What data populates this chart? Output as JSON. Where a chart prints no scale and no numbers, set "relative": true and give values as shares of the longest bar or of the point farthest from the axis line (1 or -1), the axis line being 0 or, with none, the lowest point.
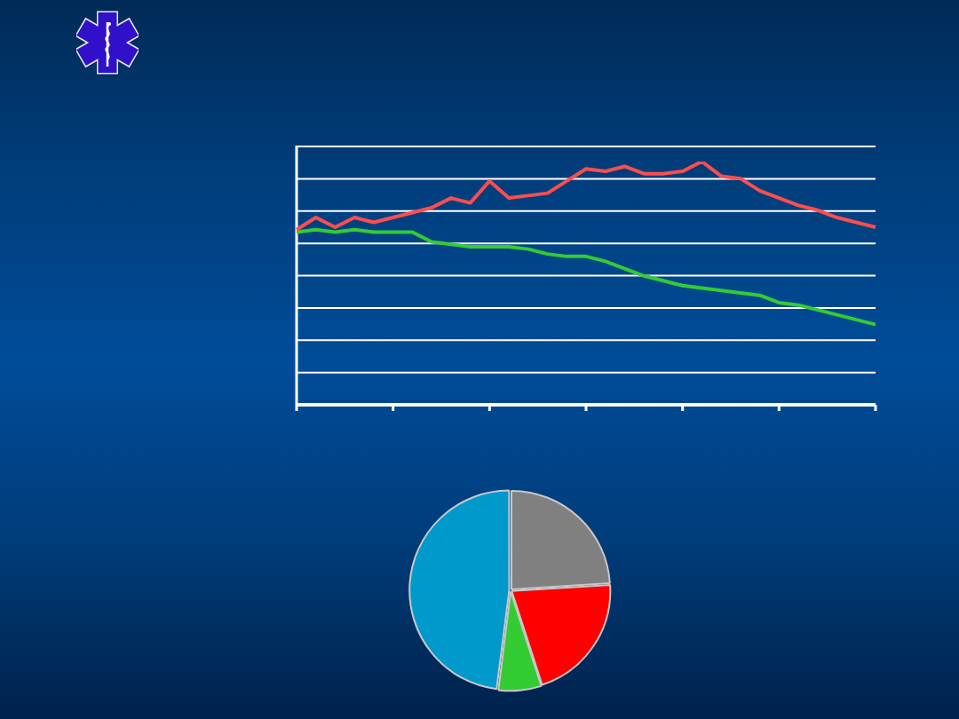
{
  "chart_data": [
    {
      "type": "line",
      "relative": true,
      "categories": [
        null,
        null,
        null,
        null,
        null,
        null,
        null,
        null,
        null,
        null,
        null,
        null,
        null,
        null,
        null,
        null,
        null,
        null,
        null,
        null,
        null,
        null,
        null,
        null,
        null,
        null,
        null,
        null,
        null,
        null,
        null
      ],
      "series": [
        {
          "color": "#ff4d4d",
          "values": [
            0.72,
            0.77,
            0.73,
            0.77,
            0.75,
            0.77,
            0.79,
            0.81,
            0.85,
            0.83,
            0.92,
            0.85,
            0.86,
            0.87,
            0.92,
            0.97,
            0.96,
            0.98,
            0.95,
            0.95,
            0.96,
            1,
            0.94,
            0.93,
            0.88,
            0.85,
            0.82,
            0.8,
            0.77,
            0.75,
            0.73
          ]
        },
        {
          "color": "#33cc33",
          "values": [
            0.71,
            0.72,
            0.71,
            0.72,
            0.71,
            0.71,
            0.71,
            0.67,
            0.66,
            0.65,
            0.65,
            0.65,
            0.64,
            0.62,
            0.61,
            0.61,
            0.59,
            0.56,
            0.53,
            0.51,
            0.49,
            0.48,
            0.47,
            0.46,
            0.45,
            0.42,
            0.41,
            0.39,
            0.37,
            0.35,
            0.33
          ]
        }
      ],
      "grid": "y",
      "marker": "none",
      "line_style": "solid"
    },
    {
      "type": "pie",
      "categories": [
        null,
        null,
        null,
        null
      ],
      "values": [
        24,
        21,
        7,
        48
      ],
      "colors": [
        "#808080",
        "#ff0000",
        "#33cc33",
        "#0099cc"
      ]
    }
  ]
}
